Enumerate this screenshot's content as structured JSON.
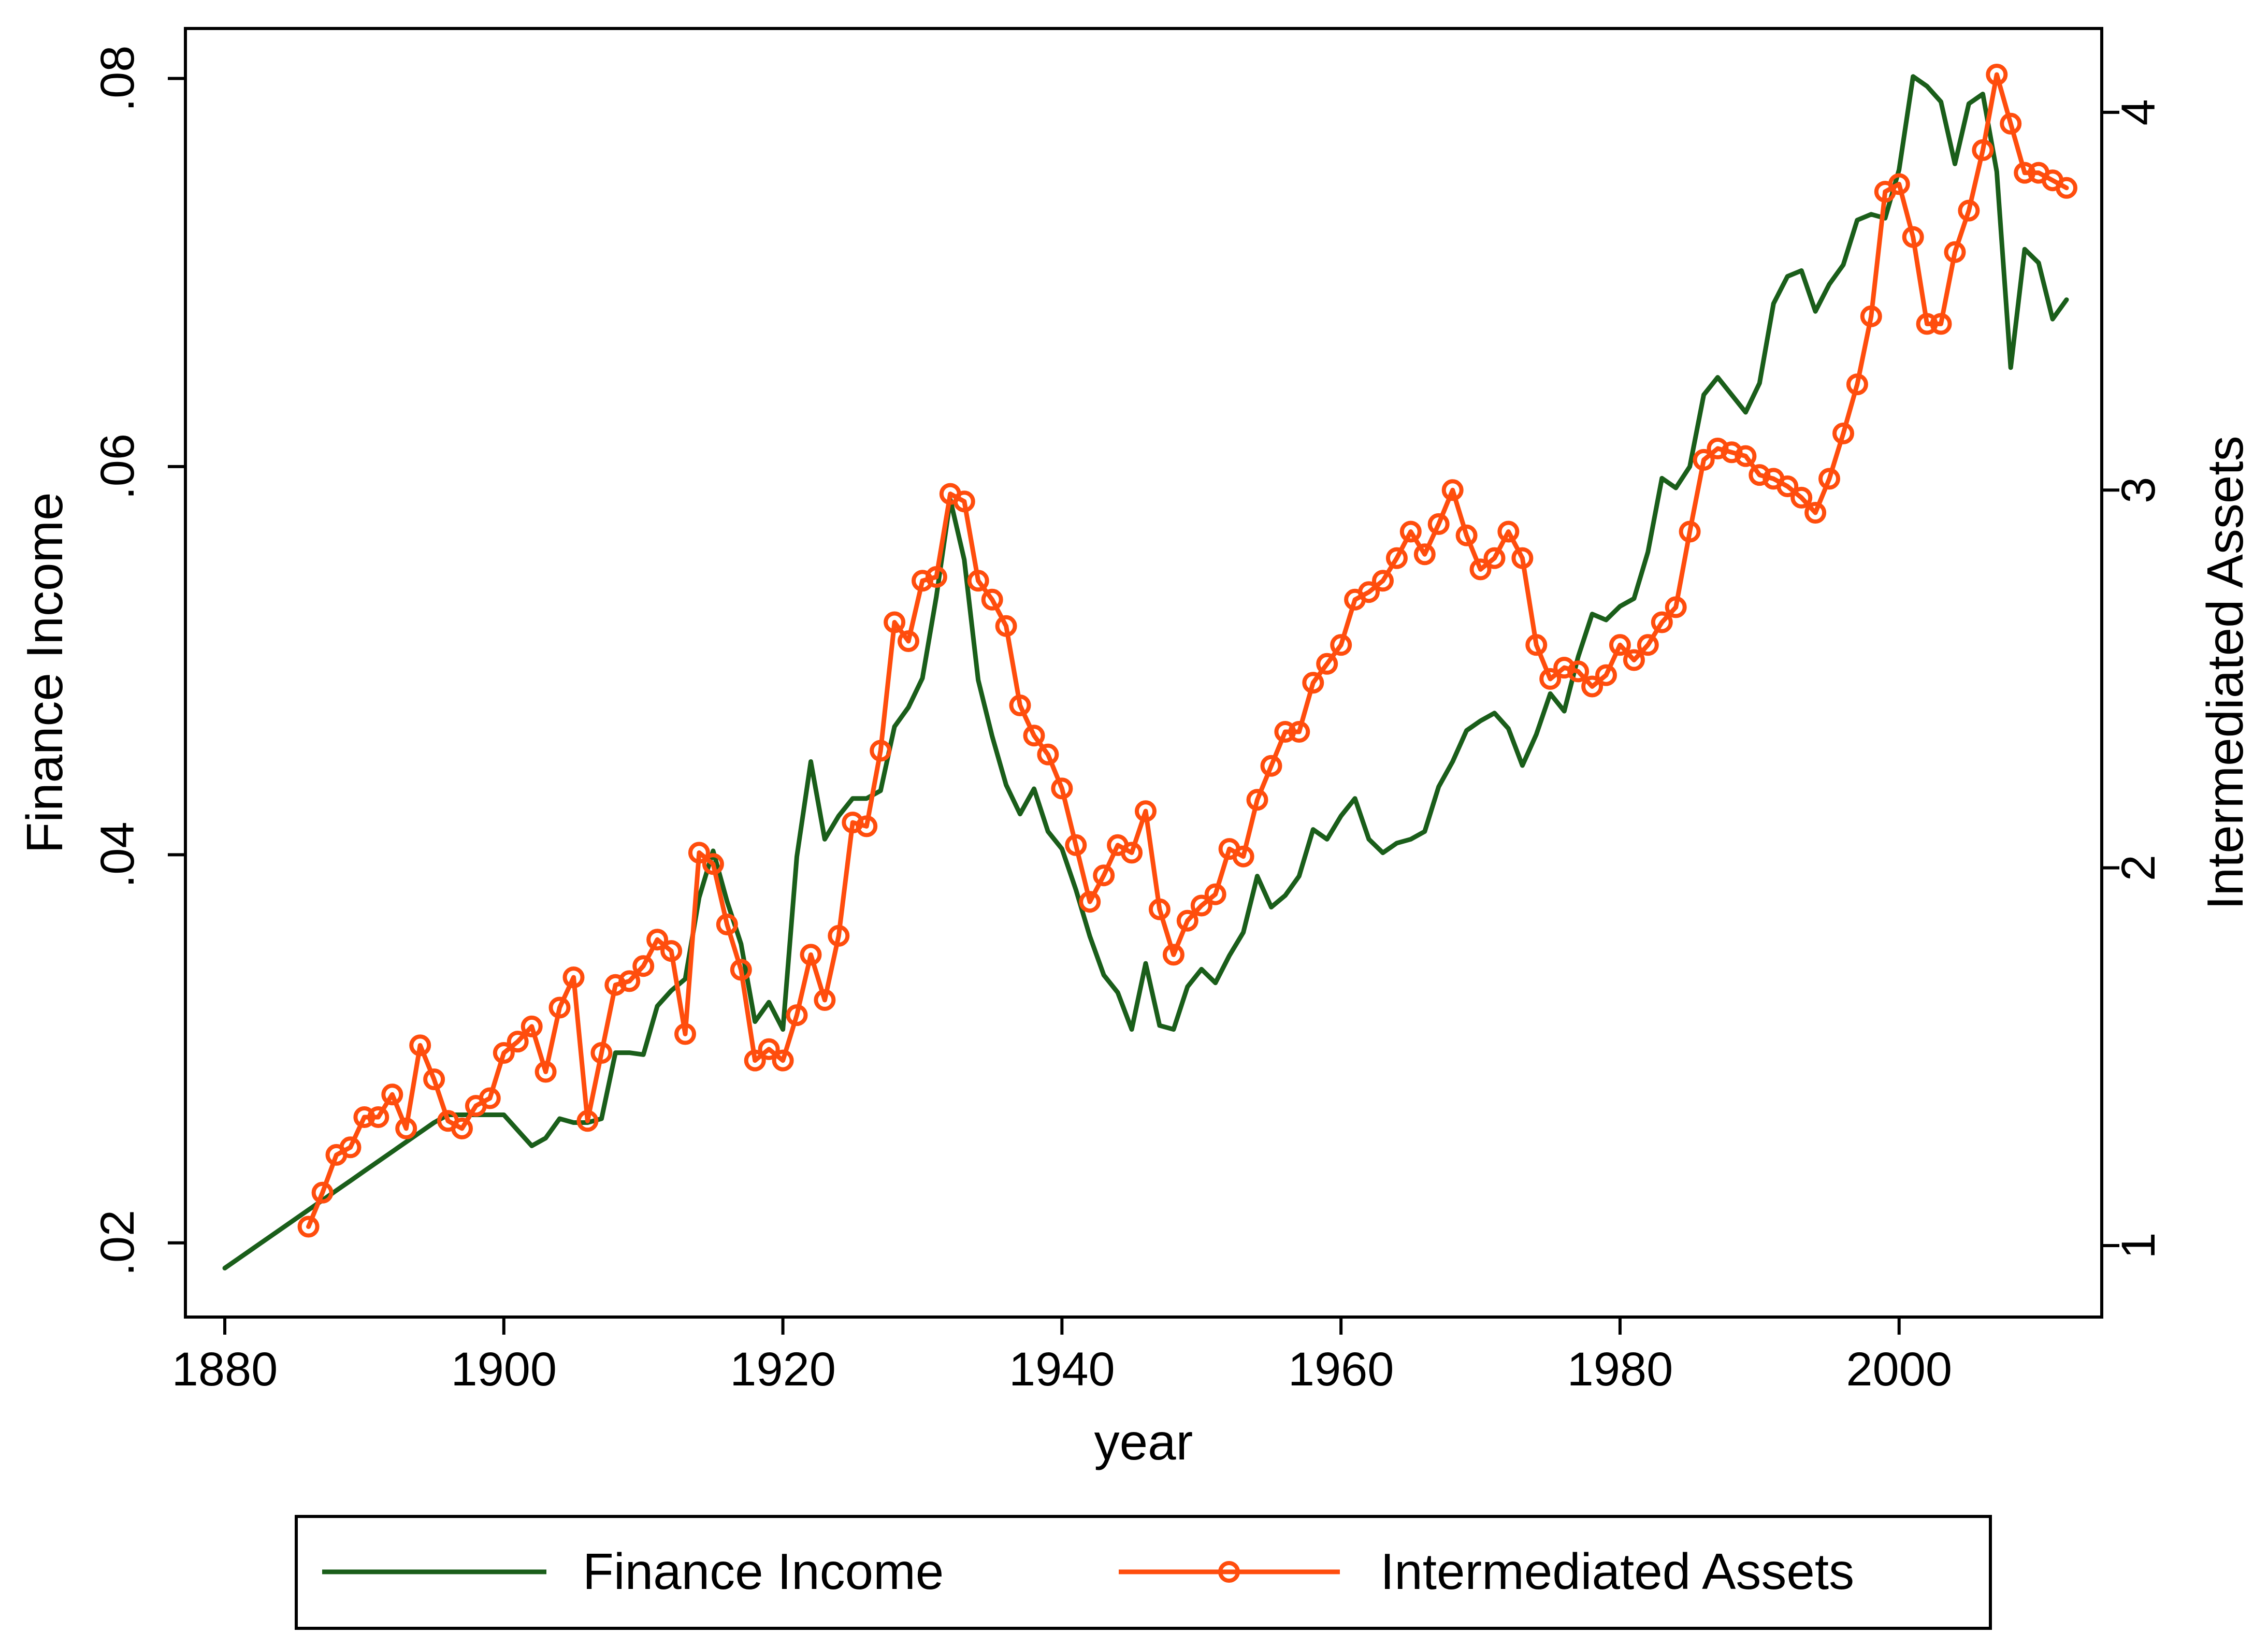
{
  "chart_data": {
    "type": "line",
    "xlabel": "year",
    "ylabel_left": "Finance Income",
    "ylabel_right": "Intermediated Assets",
    "xlim": [
      1880,
      2012
    ],
    "x_ticks": [
      1880,
      1900,
      1920,
      1940,
      1960,
      1980,
      2000
    ],
    "ylim_left": [
      0.0185,
      0.0802
    ],
    "y_ticks_left": [
      0.02,
      0.04,
      0.06,
      0.08
    ],
    "y_tick_labels_left": [
      ".02",
      ".04",
      ".06",
      ".08"
    ],
    "ylim_right": [
      0.93,
      4.1
    ],
    "y_ticks_right": [
      1,
      2,
      3,
      4
    ],
    "y_tick_labels_right": [
      "1",
      "2",
      "3",
      "4"
    ],
    "grid": false,
    "legend_position": "bottom",
    "series": [
      {
        "name": "Finance Income",
        "axis": "left",
        "color": "#1a5e1a",
        "marker": "none",
        "x": [
          1880,
          1881,
          1882,
          1883,
          1884,
          1885,
          1886,
          1887,
          1888,
          1889,
          1890,
          1891,
          1892,
          1893,
          1894,
          1895,
          1896,
          1897,
          1898,
          1899,
          1900,
          1901,
          1902,
          1903,
          1904,
          1905,
          1906,
          1907,
          1908,
          1909,
          1910,
          1911,
          1912,
          1913,
          1914,
          1915,
          1916,
          1917,
          1918,
          1919,
          1920,
          1921,
          1922,
          1923,
          1924,
          1925,
          1926,
          1927,
          1928,
          1929,
          1930,
          1931,
          1932,
          1933,
          1934,
          1935,
          1936,
          1937,
          1938,
          1939,
          1940,
          1941,
          1942,
          1943,
          1944,
          1945,
          1946,
          1947,
          1948,
          1949,
          1950,
          1951,
          1952,
          1953,
          1954,
          1955,
          1956,
          1957,
          1958,
          1959,
          1960,
          1961,
          1962,
          1963,
          1964,
          1965,
          1966,
          1967,
          1968,
          1969,
          1970,
          1971,
          1972,
          1973,
          1974,
          1975,
          1976,
          1977,
          1978,
          1979,
          1980,
          1981,
          1982,
          1983,
          1984,
          1985,
          1986,
          1987,
          1988,
          1989,
          1990,
          1991,
          1992,
          1993,
          1994,
          1995,
          1996,
          1997,
          1998,
          1999,
          2000,
          2001,
          2002,
          2003,
          2004,
          2005,
          2006,
          2007,
          2008,
          2009,
          2010,
          2011,
          2012
        ],
        "y": [
          0.0187,
          0.0192,
          0.0197,
          0.0202,
          0.0207,
          0.0212,
          0.0217,
          0.0222,
          0.0227,
          0.0232,
          0.0237,
          0.0242,
          0.0247,
          0.0252,
          0.0257,
          0.0262,
          0.0266,
          0.0266,
          0.0266,
          0.0266,
          0.0266,
          0.0258,
          0.025,
          0.0254,
          0.0264,
          0.0262,
          0.0262,
          0.0264,
          0.0298,
          0.0298,
          0.0297,
          0.0322,
          0.033,
          0.0336,
          0.0378,
          0.0402,
          0.0376,
          0.0354,
          0.0314,
          0.0324,
          0.031,
          0.0399,
          0.0448,
          0.0408,
          0.042,
          0.0429,
          0.0429,
          0.0433,
          0.0466,
          0.0476,
          0.0491,
          0.0533,
          0.0583,
          0.0552,
          0.049,
          0.0461,
          0.0436,
          0.0421,
          0.0434,
          0.0412,
          0.0403,
          0.0382,
          0.0358,
          0.0338,
          0.0329,
          0.031,
          0.0344,
          0.0312,
          0.031,
          0.0332,
          0.0341,
          0.0334,
          0.0348,
          0.036,
          0.0389,
          0.0373,
          0.0379,
          0.0389,
          0.0413,
          0.0408,
          0.042,
          0.0429,
          0.0408,
          0.0401,
          0.0406,
          0.0408,
          0.0412,
          0.0435,
          0.0448,
          0.0464,
          0.0469,
          0.0473,
          0.0465,
          0.0446,
          0.0462,
          0.0483,
          0.0474,
          0.0502,
          0.0524,
          0.0521,
          0.0528,
          0.0532,
          0.0556,
          0.0594,
          0.0589,
          0.06,
          0.0637,
          0.0646,
          0.0637,
          0.0628,
          0.0643,
          0.0684,
          0.0698,
          0.0701,
          0.068,
          0.0694,
          0.0704,
          0.0727,
          0.073,
          0.0728,
          0.0753,
          0.0801,
          0.0796,
          0.0788,
          0.0756,
          0.0787,
          0.0792,
          0.0752,
          0.0651,
          0.0712,
          0.0705,
          0.0676,
          0.0686
        ]
      },
      {
        "name": "Intermediated Assets",
        "axis": "right",
        "color": "#ff4d0d",
        "marker": "circle",
        "x": [
          1886,
          1887,
          1888,
          1889,
          1890,
          1891,
          1892,
          1893,
          1894,
          1895,
          1896,
          1897,
          1898,
          1899,
          1900,
          1901,
          1902,
          1903,
          1904,
          1905,
          1906,
          1907,
          1908,
          1909,
          1910,
          1911,
          1912,
          1913,
          1914,
          1915,
          1916,
          1917,
          1918,
          1919,
          1920,
          1921,
          1922,
          1923,
          1924,
          1925,
          1926,
          1927,
          1928,
          1929,
          1930,
          1931,
          1932,
          1933,
          1934,
          1935,
          1936,
          1937,
          1938,
          1939,
          1940,
          1941,
          1942,
          1943,
          1944,
          1945,
          1946,
          1947,
          1948,
          1949,
          1950,
          1951,
          1952,
          1953,
          1954,
          1955,
          1956,
          1957,
          1958,
          1959,
          1960,
          1961,
          1962,
          1963,
          1964,
          1965,
          1966,
          1967,
          1968,
          1969,
          1970,
          1971,
          1972,
          1973,
          1974,
          1975,
          1976,
          1977,
          1978,
          1979,
          1980,
          1981,
          1982,
          1983,
          1984,
          1985,
          1986,
          1987,
          1988,
          1989,
          1990,
          1991,
          1992,
          1993,
          1994,
          1995,
          1996,
          1997,
          1998,
          1999,
          2000,
          2001,
          2002,
          2003,
          2004,
          2005,
          2006,
          2007,
          2008,
          2009,
          2010,
          2011,
          2012
        ],
        "y": [
          1.05,
          1.14,
          1.24,
          1.26,
          1.34,
          1.34,
          1.4,
          1.31,
          1.53,
          1.44,
          1.33,
          1.31,
          1.37,
          1.39,
          1.51,
          1.54,
          1.58,
          1.46,
          1.63,
          1.71,
          1.33,
          1.51,
          1.69,
          1.7,
          1.74,
          1.81,
          1.78,
          1.56,
          2.04,
          2.01,
          1.85,
          1.73,
          1.49,
          1.52,
          1.49,
          1.61,
          1.77,
          1.65,
          1.82,
          2.12,
          2.11,
          2.31,
          2.65,
          2.6,
          2.76,
          2.77,
          2.99,
          2.97,
          2.76,
          2.71,
          2.64,
          2.43,
          2.35,
          2.3,
          2.21,
          2.06,
          1.91,
          1.98,
          2.06,
          2.04,
          2.15,
          1.89,
          1.77,
          1.86,
          1.9,
          1.93,
          2.05,
          2.03,
          2.18,
          2.27,
          2.36,
          2.36,
          2.49,
          2.54,
          2.59,
          2.71,
          2.73,
          2.76,
          2.82,
          2.89,
          2.83,
          2.91,
          3.0,
          2.88,
          2.79,
          2.82,
          2.89,
          2.82,
          2.59,
          2.5,
          2.53,
          2.52,
          2.48,
          2.51,
          2.59,
          2.55,
          2.59,
          2.65,
          2.69,
          2.89,
          3.08,
          3.11,
          3.1,
          3.09,
          3.04,
          3.03,
          3.01,
          2.98,
          2.94,
          3.03,
          3.15,
          3.28,
          3.46,
          3.79,
          3.81,
          3.67,
          3.44,
          3.44,
          3.63,
          3.74,
          3.9,
          4.1,
          3.97,
          3.84,
          3.84,
          3.82,
          3.8
        ]
      }
    ]
  }
}
